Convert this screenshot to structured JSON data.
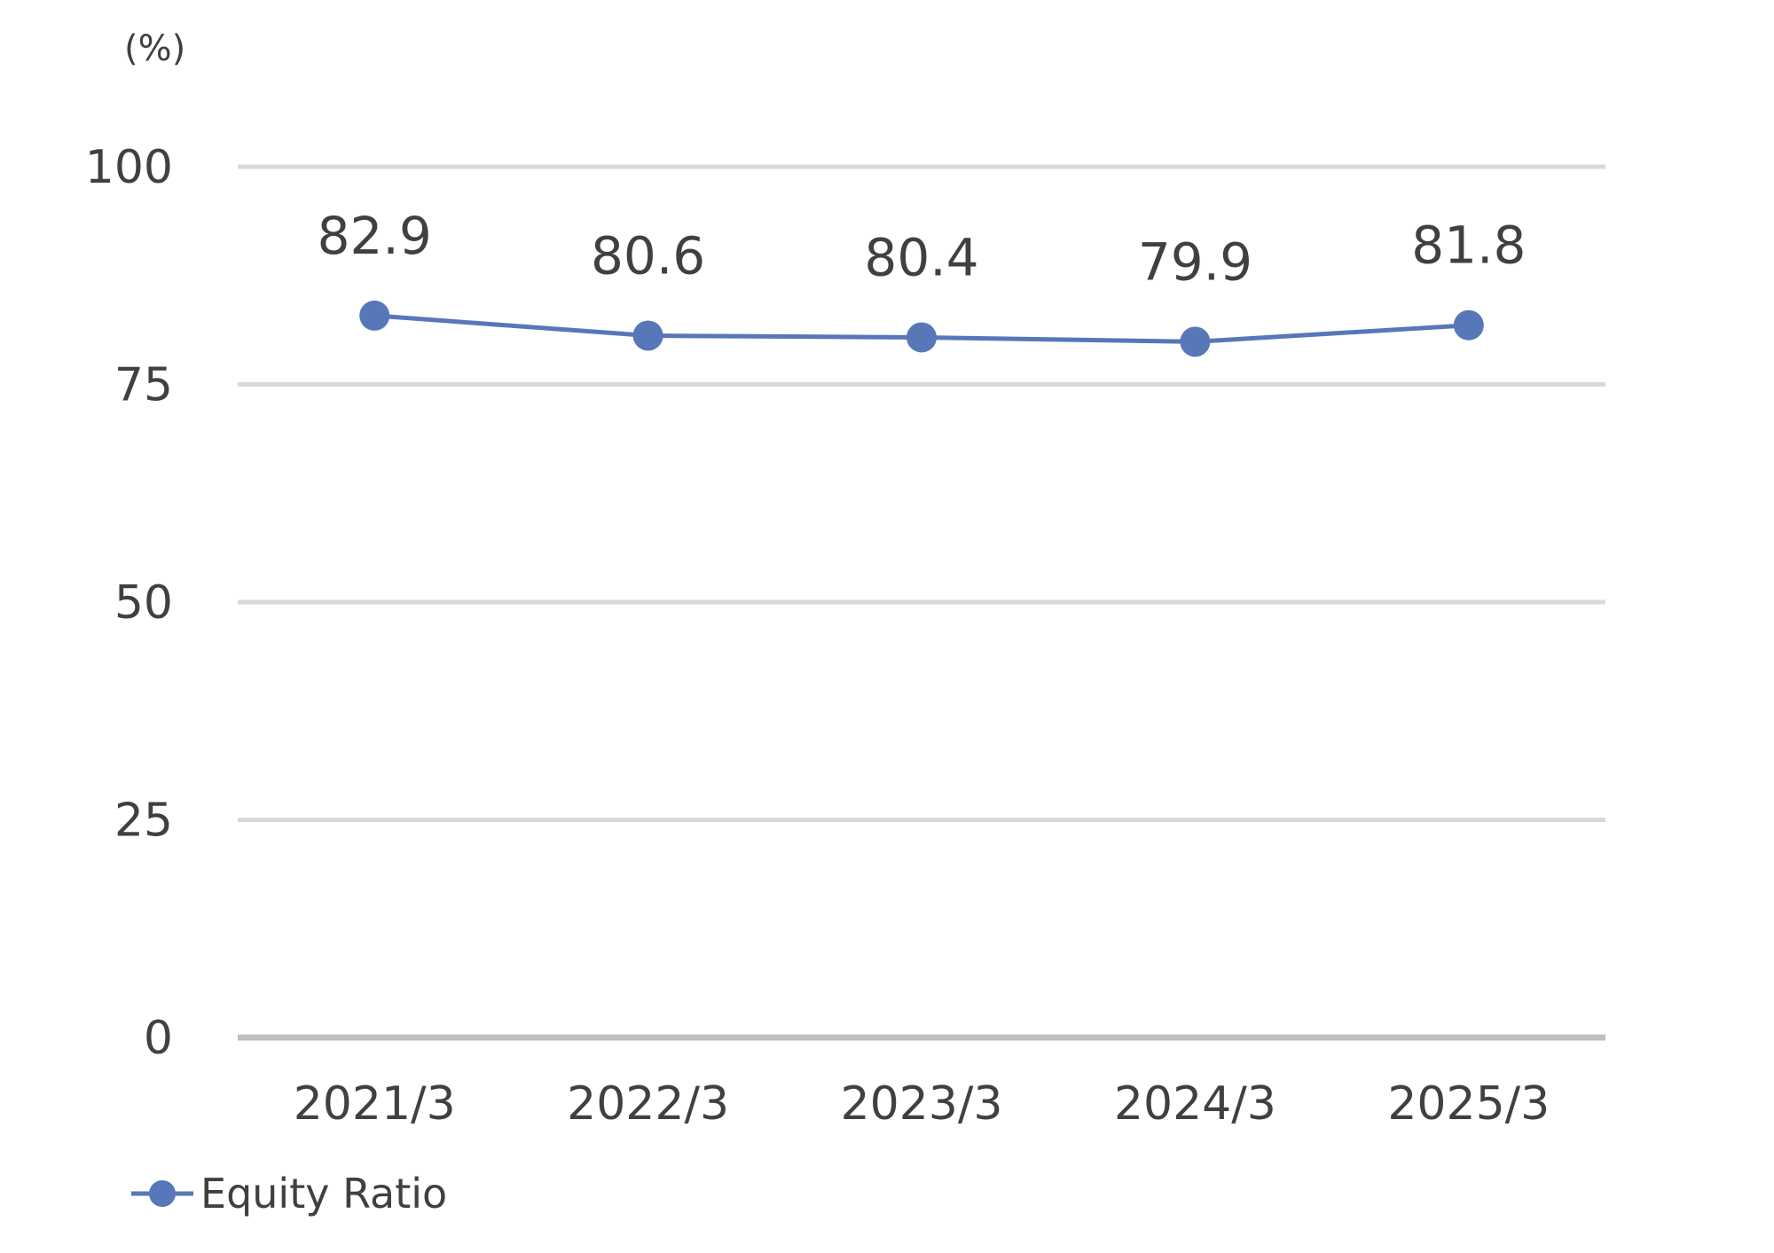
{
  "chart_data": {
    "type": "line",
    "title": "",
    "ylabel": "(%)",
    "xlabel": "",
    "categories": [
      "2021/3",
      "2022/3",
      "2023/3",
      "2024/3",
      "2025/3"
    ],
    "series": [
      {
        "name": "Equity Ratio",
        "values": [
          82.9,
          80.6,
          80.4,
          79.9,
          81.8
        ],
        "color": "#5877b9"
      }
    ],
    "data_labels": [
      "82.9",
      "80.6",
      "80.4",
      "79.9",
      "81.8"
    ],
    "ylim": [
      0,
      100
    ],
    "yticks": [
      0,
      25,
      50,
      75,
      100
    ],
    "ytick_labels": [
      "0",
      "25",
      "50",
      "75",
      "100"
    ],
    "grid": true,
    "grid_color": "#d9d9d9",
    "axis_color": "#bfbfbf",
    "text_color": "#404040",
    "legend_position": "bottom-left",
    "marker": "circle"
  }
}
